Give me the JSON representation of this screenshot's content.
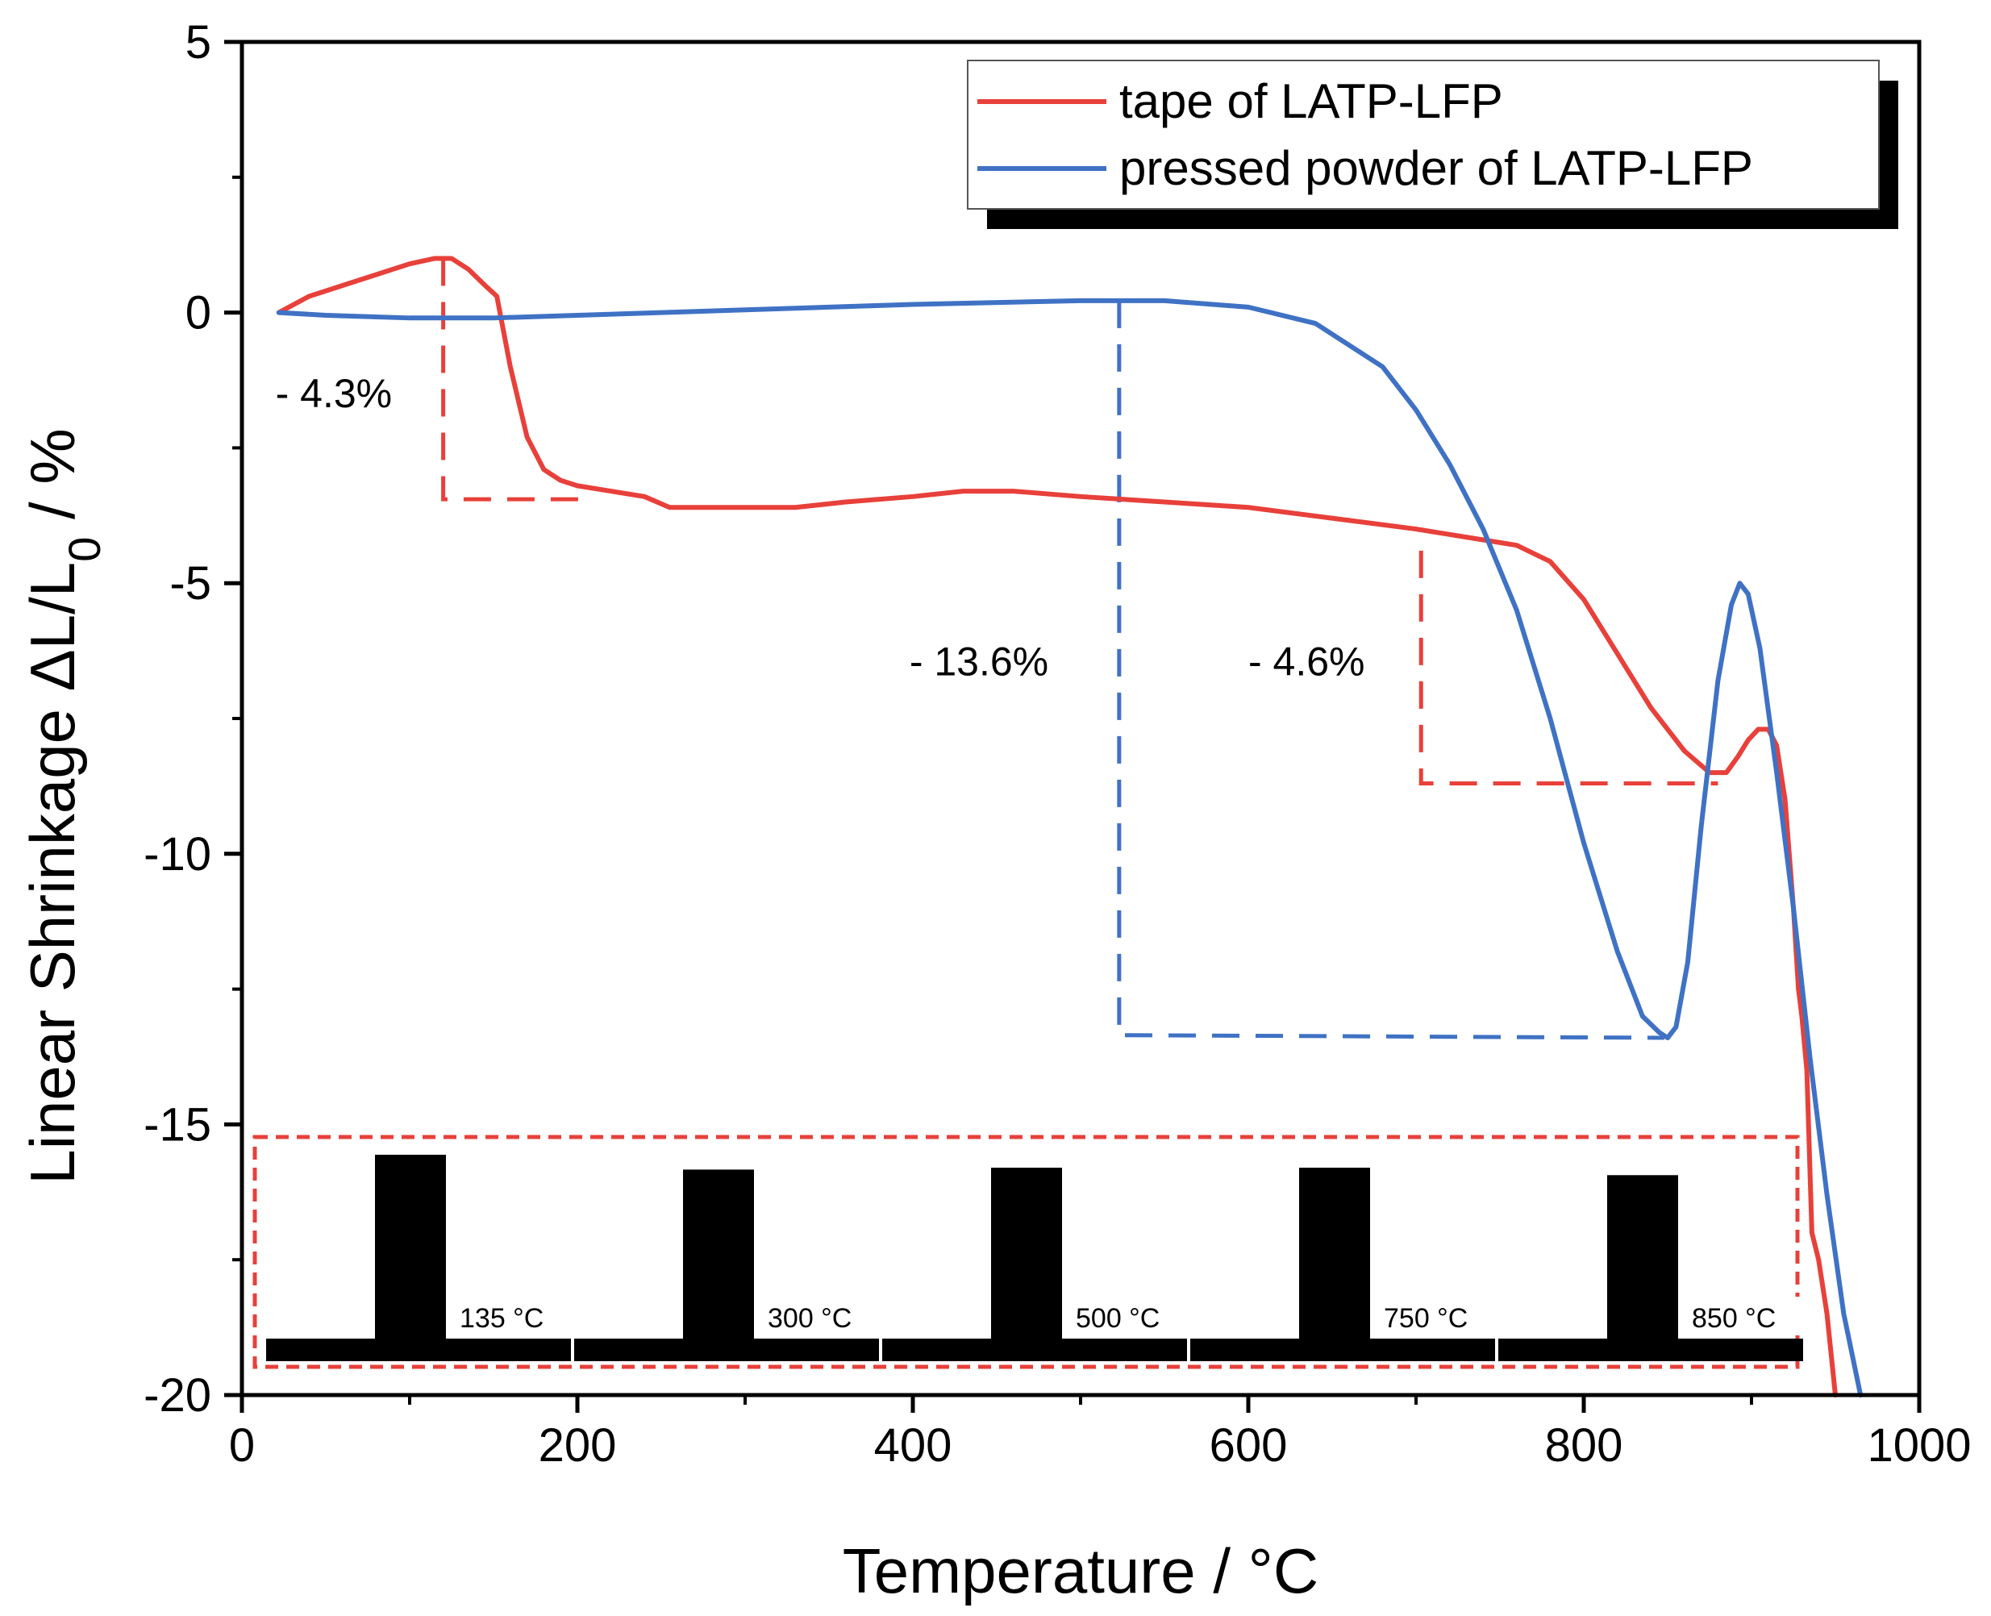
{
  "chart_data": {
    "type": "line",
    "xlabel": "Temperature / °C",
    "ylabel_main": "Linear Shrinkage ΔL/L",
    "ylabel_sub": "0",
    "ylabel_tail": " / %",
    "xlim": [
      0,
      1000
    ],
    "ylim": [
      -20,
      5
    ],
    "x_ticks": [
      0,
      200,
      400,
      600,
      800,
      1000
    ],
    "x_tick_labels": [
      "0",
      "200",
      "400",
      "600",
      "800",
      "1000"
    ],
    "y_ticks": [
      5,
      0,
      -5,
      -10,
      -15,
      -20
    ],
    "y_tick_labels": [
      "5",
      "0",
      "-5",
      "-10",
      "-15",
      "-20"
    ],
    "colors": {
      "tape": "#e8403a",
      "powder": "#3f72c4"
    },
    "legend_position": "top-right",
    "series": [
      {
        "key": "tape",
        "name": "tape of LATP-LFP",
        "x": [
          22,
          40,
          60,
          80,
          100,
          115,
          125,
          135,
          145,
          152,
          160,
          170,
          180,
          190,
          200,
          220,
          240,
          255,
          270,
          300,
          330,
          360,
          400,
          430,
          460,
          500,
          550,
          600,
          650,
          700,
          740,
          760,
          780,
          800,
          820,
          840,
          860,
          875,
          885,
          892,
          898,
          904,
          910,
          915,
          920,
          925,
          928,
          930,
          933,
          936,
          940,
          945,
          950
        ],
        "y": [
          0.0,
          0.3,
          0.5,
          0.7,
          0.9,
          1.0,
          1.0,
          0.8,
          0.5,
          0.3,
          -1.0,
          -2.3,
          -2.9,
          -3.1,
          -3.2,
          -3.3,
          -3.4,
          -3.6,
          -3.6,
          -3.6,
          -3.6,
          -3.5,
          -3.4,
          -3.3,
          -3.3,
          -3.4,
          -3.5,
          -3.6,
          -3.8,
          -4.0,
          -4.2,
          -4.3,
          -4.6,
          -5.3,
          -6.3,
          -7.3,
          -8.1,
          -8.5,
          -8.5,
          -8.2,
          -7.9,
          -7.7,
          -7.7,
          -8.0,
          -9.0,
          -11.0,
          -12.5,
          -13.0,
          -14.0,
          -17.0,
          -17.5,
          -18.5,
          -20.0
        ]
      },
      {
        "key": "powder",
        "name": "pressed powder of LATP-LFP",
        "x": [
          22,
          50,
          100,
          150,
          200,
          300,
          400,
          500,
          550,
          600,
          640,
          680,
          700,
          720,
          740,
          760,
          780,
          800,
          820,
          835,
          845,
          850,
          855,
          862,
          870,
          880,
          888,
          893,
          898,
          905,
          915,
          925,
          935,
          945,
          955,
          965
        ],
        "y": [
          0.0,
          -0.05,
          -0.1,
          -0.1,
          -0.05,
          0.05,
          0.15,
          0.22,
          0.22,
          0.1,
          -0.2,
          -1.0,
          -1.8,
          -2.8,
          -4.0,
          -5.5,
          -7.5,
          -9.8,
          -11.8,
          -13.0,
          -13.3,
          -13.4,
          -13.2,
          -12.0,
          -9.5,
          -6.8,
          -5.4,
          -5.0,
          -5.2,
          -6.2,
          -8.5,
          -11.0,
          -13.8,
          -16.3,
          -18.5,
          -20.0
        ]
      }
    ],
    "annotations": [
      {
        "text": "- 4.3%",
        "x": 20,
        "y": -1.75
      },
      {
        "text": "- 13.6%",
        "x": 398,
        "y": -6.7
      },
      {
        "text": "- 4.6%",
        "x": 600,
        "y": -6.7
      }
    ],
    "step_lines": [
      {
        "series": "tape",
        "points": [
          [
            120,
            1.0
          ],
          [
            120,
            -3.45
          ],
          [
            208,
            -3.45
          ]
        ]
      },
      {
        "series": "powder",
        "points": [
          [
            523,
            0.22
          ],
          [
            523,
            -13.35
          ],
          [
            848,
            -13.4
          ]
        ]
      },
      {
        "series": "tape",
        "points": [
          [
            703,
            -4.4
          ],
          [
            703,
            -8.7
          ],
          [
            880,
            -8.7
          ]
        ]
      }
    ],
    "inset": {
      "description_labels": [
        "135 °C",
        "300 °C",
        "500 °C",
        "750 °C",
        "850 °C"
      ],
      "pillar_heights": [
        1.0,
        0.92,
        0.93,
        0.93,
        0.89
      ],
      "border_color": "#e8403a"
    }
  }
}
